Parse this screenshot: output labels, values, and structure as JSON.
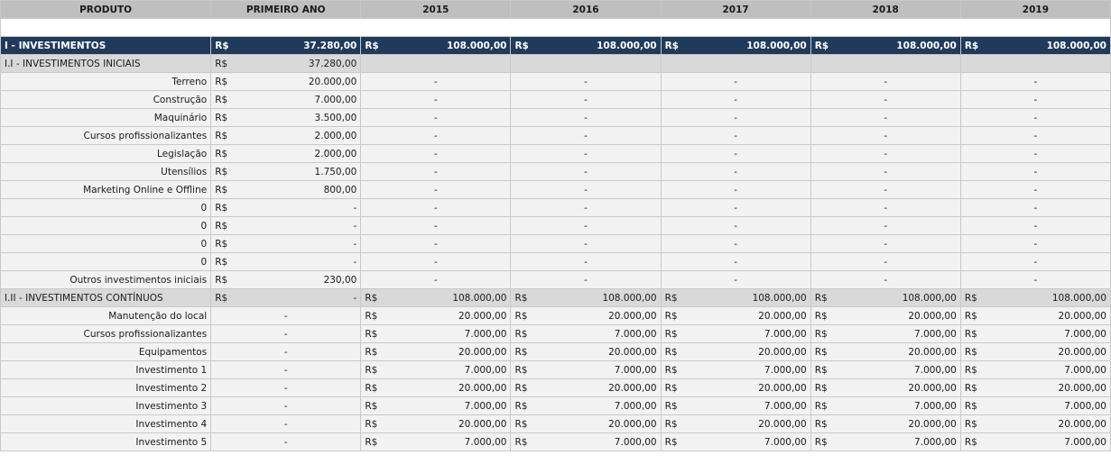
{
  "header": [
    "PRODUTO",
    "PRIMEIRO ANO",
    "2015",
    "2016",
    "2017",
    "2018",
    "2019"
  ],
  "currency": "R$",
  "dash": "-",
  "rows": [
    {
      "kind": "sec",
      "label": "I - INVESTIMENTOS",
      "first": "37.280,00",
      "years": [
        "108.000,00",
        "108.000,00",
        "108.000,00",
        "108.000,00",
        "108.000,00"
      ]
    },
    {
      "kind": "sub",
      "label": "I.I - INVESTIMENTOS INICIAIS",
      "first": "37.280,00",
      "years": [
        "",
        "",
        "",
        "",
        ""
      ]
    },
    {
      "kind": "item",
      "label": "Terreno",
      "first": "20.000,00",
      "years": [
        "-",
        "-",
        "-",
        "-",
        "-"
      ]
    },
    {
      "kind": "item",
      "label": "Construção",
      "first": "7.000,00",
      "years": [
        "-",
        "-",
        "-",
        "-",
        "-"
      ]
    },
    {
      "kind": "item",
      "label": "Maquinário",
      "first": "3.500,00",
      "years": [
        "-",
        "-",
        "-",
        "-",
        "-"
      ]
    },
    {
      "kind": "item",
      "label": "Cursos profissionalizantes",
      "first": "2.000,00",
      "years": [
        "-",
        "-",
        "-",
        "-",
        "-"
      ]
    },
    {
      "kind": "item",
      "label": "Legislação",
      "first": "2.000,00",
      "years": [
        "-",
        "-",
        "-",
        "-",
        "-"
      ]
    },
    {
      "kind": "item",
      "label": "Utensílios",
      "first": "1.750,00",
      "years": [
        "-",
        "-",
        "-",
        "-",
        "-"
      ]
    },
    {
      "kind": "item",
      "label": "Marketing Online e Offline",
      "first": "800,00",
      "years": [
        "-",
        "-",
        "-",
        "-",
        "-"
      ]
    },
    {
      "kind": "item",
      "label": "0",
      "first": "-",
      "years": [
        "-",
        "-",
        "-",
        "-",
        "-"
      ]
    },
    {
      "kind": "item",
      "label": "0",
      "first": "-",
      "years": [
        "-",
        "-",
        "-",
        "-",
        "-"
      ]
    },
    {
      "kind": "item",
      "label": "0",
      "first": "-",
      "years": [
        "-",
        "-",
        "-",
        "-",
        "-"
      ]
    },
    {
      "kind": "item",
      "label": "0",
      "first": "-",
      "years": [
        "-",
        "-",
        "-",
        "-",
        "-"
      ]
    },
    {
      "kind": "item",
      "label": "Outros investimentos iniciais",
      "first": "230,00",
      "years": [
        "-",
        "-",
        "-",
        "-",
        "-"
      ]
    },
    {
      "kind": "sub",
      "label": "I.II - INVESTIMENTOS CONTÍNUOS",
      "first": "-",
      "years": [
        "108.000,00",
        "108.000,00",
        "108.000,00",
        "108.000,00",
        "108.000,00"
      ]
    },
    {
      "kind": "cont",
      "label": "Manutenção do local",
      "first": "-",
      "years": [
        "20.000,00",
        "20.000,00",
        "20.000,00",
        "20.000,00",
        "20.000,00"
      ]
    },
    {
      "kind": "cont",
      "label": "Cursos profissionalizantes",
      "first": "-",
      "years": [
        "7.000,00",
        "7.000,00",
        "7.000,00",
        "7.000,00",
        "7.000,00"
      ]
    },
    {
      "kind": "cont",
      "label": "Equipamentos",
      "first": "-",
      "years": [
        "20.000,00",
        "20.000,00",
        "20.000,00",
        "20.000,00",
        "20.000,00"
      ]
    },
    {
      "kind": "cont",
      "label": "Investimento 1",
      "first": "-",
      "years": [
        "7.000,00",
        "7.000,00",
        "7.000,00",
        "7.000,00",
        "7.000,00"
      ]
    },
    {
      "kind": "cont",
      "label": "Investimento 2",
      "first": "-",
      "years": [
        "20.000,00",
        "20.000,00",
        "20.000,00",
        "20.000,00",
        "20.000,00"
      ]
    },
    {
      "kind": "cont",
      "label": "Investimento 3",
      "first": "-",
      "years": [
        "7.000,00",
        "7.000,00",
        "7.000,00",
        "7.000,00",
        "7.000,00"
      ]
    },
    {
      "kind": "cont",
      "label": "Investimento 4",
      "first": "-",
      "years": [
        "20.000,00",
        "20.000,00",
        "20.000,00",
        "20.000,00",
        "20.000,00"
      ]
    },
    {
      "kind": "cont",
      "label": "Investimento 5",
      "first": "-",
      "years": [
        "7.000,00",
        "7.000,00",
        "7.000,00",
        "7.000,00",
        "7.000,00"
      ]
    }
  ]
}
